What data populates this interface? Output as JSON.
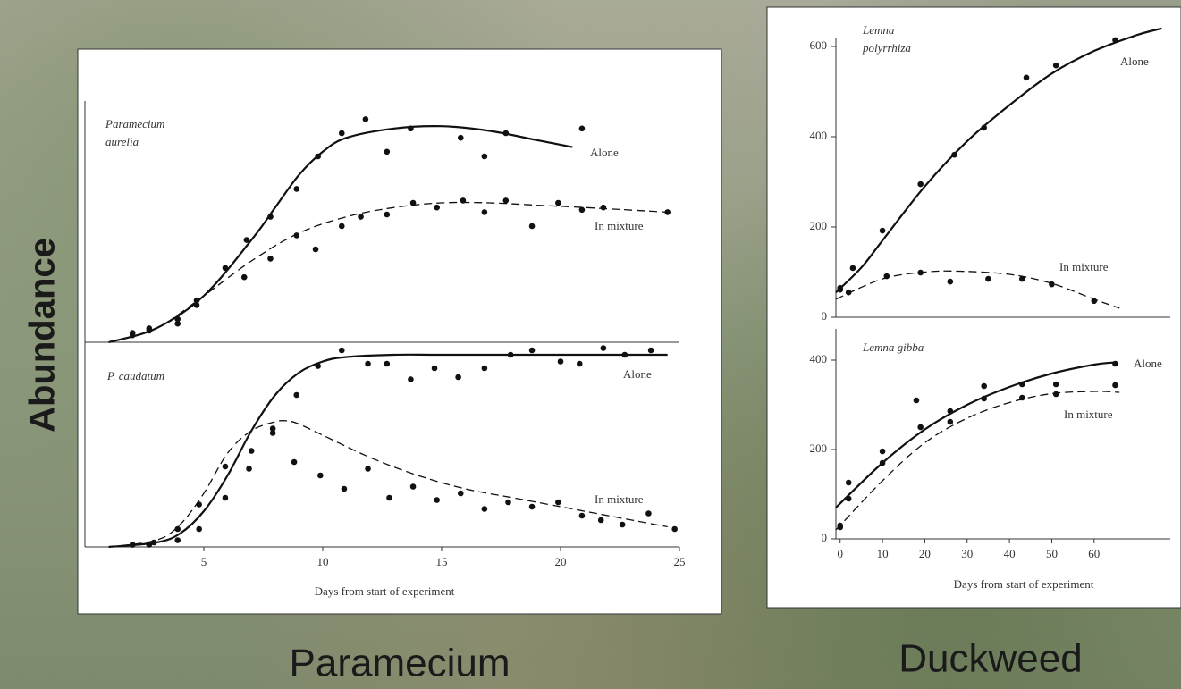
{
  "slide": {
    "y_label": "Abundance",
    "captions": [
      "Paramecium",
      "Duckweed"
    ]
  },
  "chart_data": [
    {
      "type": "scatter",
      "title": [
        "Paramecium",
        "aurelia"
      ],
      "xlim": [
        0,
        25
      ],
      "ylim": [
        0,
        5
      ],
      "series": [
        {
          "name": "Alone",
          "color": "#111111",
          "dash": false,
          "x": [
            2,
            2.7,
            3.9,
            4.7,
            5.9,
            6.8,
            7.8,
            8.9,
            9.8,
            10.8,
            11.8,
            12.7,
            13.7,
            15.8,
            16.8,
            17.7,
            20.9
          ],
          "values": [
            0.15,
            0.3,
            0.5,
            0.9,
            1.6,
            2.2,
            2.7,
            3.3,
            4.0,
            4.5,
            4.8,
            4.1,
            4.6,
            4.4,
            4.0,
            4.5,
            4.6
          ],
          "fit_x": [
            1,
            3,
            5,
            7,
            8,
            9,
            10,
            11,
            13,
            15,
            17,
            19,
            20.5
          ],
          "fit_values": [
            0,
            0.3,
            1.0,
            2.2,
            2.9,
            3.6,
            4.1,
            4.4,
            4.6,
            4.65,
            4.55,
            4.35,
            4.2
          ]
        },
        {
          "name": "In mixture",
          "color": "#111111",
          "dash": true,
          "x": [
            2,
            2.7,
            3.9,
            4.7,
            6.7,
            7.8,
            8.9,
            9.7,
            10.8,
            11.6,
            12.7,
            13.8,
            14.8,
            15.9,
            16.8,
            17.7,
            18.8,
            19.9,
            20.9,
            21.8,
            24.5
          ],
          "values": [
            0.2,
            0.25,
            0.4,
            0.8,
            1.4,
            1.8,
            2.3,
            2.0,
            2.5,
            2.7,
            2.75,
            3.0,
            2.9,
            3.05,
            2.8,
            3.05,
            2.5,
            3.0,
            2.85,
            2.9,
            2.8
          ],
          "fit_x": [
            1,
            3,
            5,
            7,
            9,
            11,
            13,
            15,
            17,
            19,
            21,
            24.5
          ],
          "fit_values": [
            0,
            0.3,
            1.0,
            1.75,
            2.35,
            2.7,
            2.9,
            3.0,
            3.0,
            2.95,
            2.9,
            2.8
          ]
        }
      ]
    },
    {
      "type": "scatter",
      "title": [
        "P. caudatum"
      ],
      "xlim": [
        0,
        25
      ],
      "ylim": [
        0,
        4.5
      ],
      "xticks": [
        5,
        10,
        15,
        20,
        25
      ],
      "x_label": "Days from start of experiment",
      "series": [
        {
          "name": "Alone",
          "color": "#111111",
          "dash": false,
          "x": [
            2,
            2.7,
            3.9,
            4.8,
            5.9,
            6.9,
            7.9,
            8.9,
            9.8,
            10.8,
            11.9,
            12.7,
            13.7,
            14.7,
            15.7,
            16.8,
            17.9,
            18.8,
            20,
            20.8,
            21.8,
            22.7,
            23.8
          ],
          "values": [
            0.05,
            0.05,
            0.15,
            0.4,
            1.1,
            1.75,
            2.55,
            3.4,
            4.05,
            4.4,
            4.1,
            4.1,
            3.75,
            4.0,
            3.8,
            4.0,
            4.3,
            4.4,
            4.15,
            4.1,
            4.45,
            4.3,
            4.4
          ],
          "fit_x": [
            1,
            3,
            4,
            5,
            6,
            7,
            8,
            9,
            10,
            11,
            13,
            15,
            19,
            24.5
          ],
          "fit_values": [
            0,
            0.1,
            0.3,
            0.8,
            1.6,
            2.6,
            3.4,
            3.9,
            4.15,
            4.25,
            4.3,
            4.3,
            4.3,
            4.3
          ]
        },
        {
          "name": "In mixture",
          "color": "#111111",
          "dash": true,
          "x": [
            2,
            2.9,
            3.9,
            4.8,
            5.9,
            7.0,
            7.9,
            8.8,
            9.9,
            10.9,
            11.9,
            12.8,
            13.8,
            14.8,
            15.8,
            16.8,
            17.8,
            18.8,
            19.9,
            20.9,
            21.7,
            22.6,
            23.7,
            24.8
          ],
          "values": [
            0.05,
            0.1,
            0.4,
            0.95,
            1.8,
            2.15,
            2.65,
            1.9,
            1.6,
            1.3,
            1.75,
            1.1,
            1.35,
            1.05,
            1.2,
            0.85,
            1.0,
            0.9,
            1.0,
            0.7,
            0.6,
            0.5,
            0.75,
            0.4
          ],
          "fit_x": [
            1,
            3,
            4,
            5,
            6,
            7,
            8,
            8.5,
            9,
            10,
            12,
            14,
            16,
            18,
            20,
            22,
            24.5
          ],
          "fit_values": [
            0,
            0.15,
            0.5,
            1.2,
            2.1,
            2.6,
            2.8,
            2.82,
            2.75,
            2.5,
            2.0,
            1.6,
            1.3,
            1.1,
            0.9,
            0.7,
            0.45
          ]
        }
      ]
    },
    {
      "type": "scatter",
      "title": [
        "Lemna",
        "polyrrhiza"
      ],
      "xlim": [
        -1,
        78
      ],
      "ylim": [
        0,
        600
      ],
      "yticks": [
        0,
        200,
        400,
        600
      ],
      "series": [
        {
          "name": "Alone",
          "color": "#111111",
          "dash": false,
          "x": [
            0,
            3,
            10,
            19,
            27,
            34,
            44,
            51,
            65
          ],
          "values": [
            61,
            109,
            192,
            295,
            360,
            420,
            531,
            558,
            614
          ],
          "fit_x": [
            -1,
            5,
            10,
            20,
            30,
            40,
            50,
            60,
            70,
            76
          ],
          "fit_values": [
            55,
            110,
            170,
            290,
            390,
            470,
            540,
            590,
            625,
            640
          ]
        },
        {
          "name": "In mixture",
          "color": "#111111",
          "dash": true,
          "x": [
            0,
            2,
            11,
            19,
            26,
            35,
            43,
            50,
            60
          ],
          "values": [
            65,
            55,
            91,
            99,
            79,
            85,
            85,
            73,
            36
          ],
          "fit_x": [
            -1,
            10,
            20,
            28,
            40,
            50,
            60,
            66
          ],
          "fit_values": [
            40,
            85,
            100,
            102,
            95,
            75,
            40,
            20
          ]
        }
      ]
    },
    {
      "type": "scatter",
      "title": [
        "Lemna gibba"
      ],
      "xlim": [
        -1,
        78
      ],
      "ylim": [
        0,
        450
      ],
      "yticks": [
        0,
        200,
        400
      ],
      "xticks": [
        0,
        10,
        20,
        30,
        40,
        50,
        60
      ],
      "x_label": "Days from start of experiment",
      "series": [
        {
          "name": "Alone",
          "color": "#111111",
          "dash": false,
          "x": [
            0,
            2,
            10,
            18,
            26,
            34,
            43,
            51,
            65
          ],
          "values": [
            30,
            126,
            196,
            310,
            286,
            342,
            346,
            346,
            392
          ],
          "fit_x": [
            -1,
            10,
            20,
            30,
            40,
            50,
            60,
            65
          ],
          "fit_values": [
            70,
            170,
            245,
            300,
            340,
            370,
            390,
            395
          ]
        },
        {
          "name": "In mixture",
          "color": "#111111",
          "dash": true,
          "x": [
            0,
            2,
            10,
            19,
            26,
            34,
            43,
            51,
            65
          ],
          "values": [
            26,
            90,
            170,
            250,
            262,
            314,
            316,
            324,
            344
          ],
          "fit_x": [
            -1,
            10,
            20,
            30,
            40,
            50,
            60,
            66
          ],
          "fit_values": [
            20,
            130,
            215,
            270,
            305,
            325,
            330,
            328
          ]
        }
      ]
    }
  ]
}
